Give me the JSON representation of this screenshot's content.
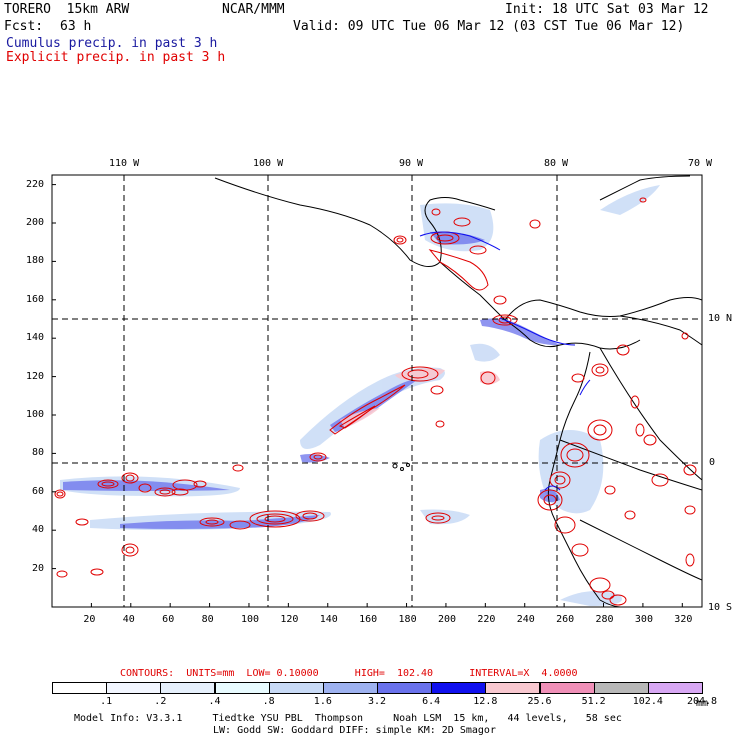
{
  "header": {
    "model": "TORERO  15km ARW",
    "center": "NCAR/MMM",
    "init": "Init: 18 UTC Sat 03 Mar 12",
    "fcst_label": "Fcst:",
    "fcst_value": "63 h",
    "valid": "Valid: 09 UTC Tue 06 Mar 12 (03 CST Tue 06 Mar 12)",
    "field1": "Cumulus precip. in past 3 h",
    "field2": "Explicit precip. in past 3 h"
  },
  "map": {
    "lon_labels": [
      "110 W",
      "100 W",
      "90 W",
      "80 W",
      "70 W"
    ],
    "lat_labels": [
      "10 N",
      "0",
      "10 S"
    ],
    "x_ticks": [
      "20",
      "40",
      "60",
      "80",
      "100",
      "120",
      "140",
      "160",
      "180",
      "200",
      "220",
      "240",
      "260",
      "280",
      "300",
      "320"
    ],
    "y_ticks": [
      "20",
      "40",
      "60",
      "80",
      "100",
      "120",
      "140",
      "160",
      "180",
      "200",
      "220"
    ]
  },
  "contours": "CONTOURS:  UNITS=mm  LOW= 0.10000      HIGH=  102.40      INTERVAL=X  4.0000",
  "legend": {
    "labels": [
      ".1",
      ".2",
      ".4",
      ".8",
      "1.6",
      "3.2",
      "6.4",
      "12.8",
      "25.6",
      "51.2",
      "102.4",
      "204.8"
    ],
    "unit": "mm",
    "colors": [
      "#ffffff",
      "#f2f6ff",
      "#e6f0fc",
      "#e8fbff",
      "#c8daf6",
      "#9eb2f0",
      "#6a72ec",
      "#1010ee",
      "#f8c8d0",
      "#f090b8",
      "#b8b8b8",
      "#d8a8f4"
    ]
  },
  "footer": {
    "line1": "Model Info: V3.3.1     Tiedtke YSU PBL  Thompson     Noah LSM  15 km,   44 levels,   58 sec",
    "line2": "LW: Godd SW: Goddard DIFF: simple KM: 2D Smagor"
  }
}
